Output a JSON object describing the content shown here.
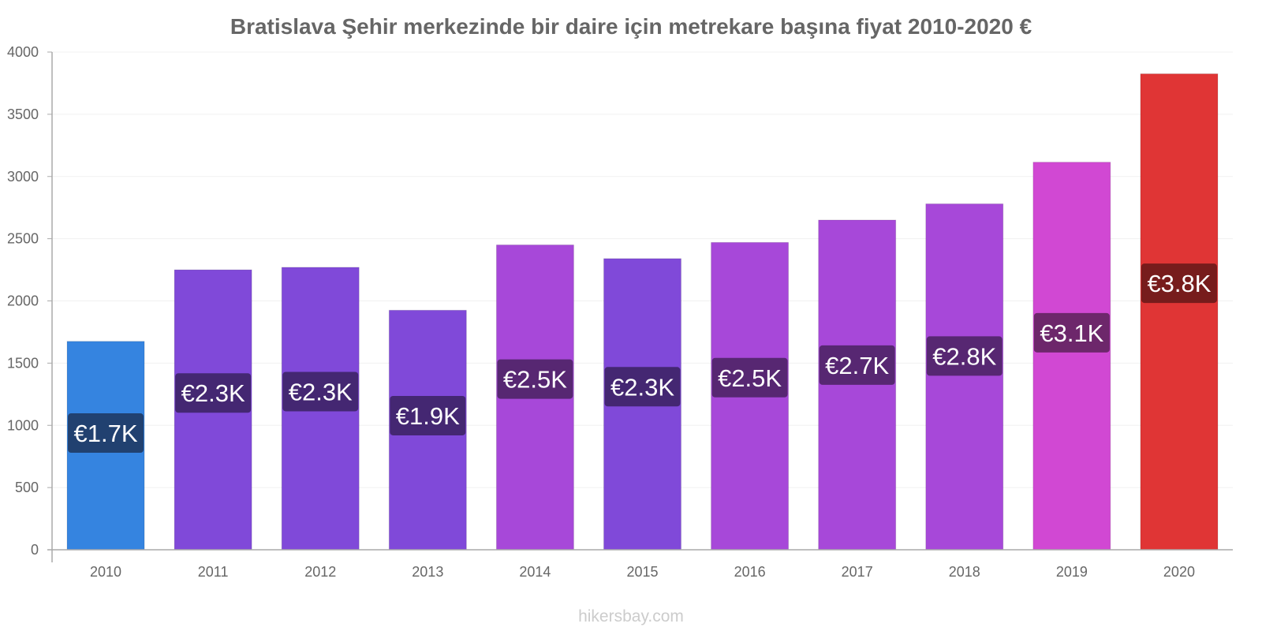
{
  "chart_data": {
    "type": "bar",
    "title": "Bratislava Şehir merkezinde bir daire için metrekare başına fiyat 2010-2020 €",
    "xlabel": "",
    "ylabel": "",
    "ylim": [
      0,
      4000
    ],
    "yticks": [
      0,
      500,
      1000,
      1500,
      2000,
      2500,
      3000,
      3500,
      4000
    ],
    "grid": true,
    "categories": [
      "2010",
      "2011",
      "2012",
      "2013",
      "2014",
      "2015",
      "2016",
      "2017",
      "2018",
      "2019",
      "2020"
    ],
    "values": [
      1675,
      2250,
      2270,
      1925,
      2450,
      2340,
      2470,
      2650,
      2780,
      3115,
      3825
    ],
    "data_labels": [
      "€1.7K",
      "€2.3K",
      "€2.3K",
      "€1.9K",
      "€2.5K",
      "€2.3K",
      "€2.5K",
      "€2.7K",
      "€2.8K",
      "€3.1K",
      "€3.8K"
    ],
    "bar_colors": [
      "#3584e0",
      "#8049d9",
      "#8049d9",
      "#8049d9",
      "#a748d9",
      "#8049d9",
      "#a748d9",
      "#a748d9",
      "#a748d9",
      "#d148d3",
      "#e03535"
    ],
    "label_bg_colors": [
      "#1f3a64",
      "#3d2466",
      "#3d2466",
      "#3d2466",
      "#4f2466",
      "#3d2466",
      "#4f2466",
      "#4f2466",
      "#4f2466",
      "#62235f",
      "#6b1a1a"
    ],
    "watermark": "hikersbay.com"
  }
}
